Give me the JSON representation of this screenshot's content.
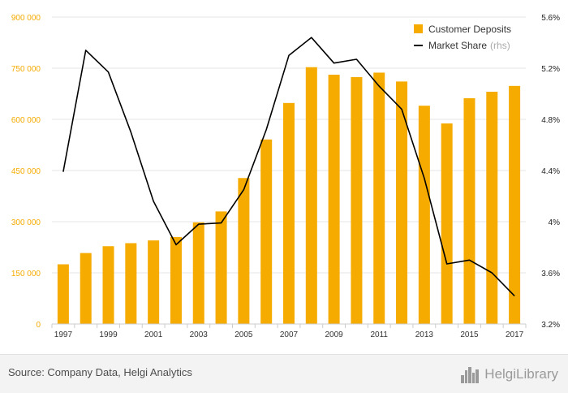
{
  "chart_data": {
    "type": "bar+line",
    "categories": [
      "1997",
      "1998",
      "1999",
      "2000",
      "2001",
      "2002",
      "2003",
      "2004",
      "2005",
      "2006",
      "2007",
      "2008",
      "2009",
      "2010",
      "2011",
      "2012",
      "2013",
      "2014",
      "2015",
      "2016",
      "2017"
    ],
    "series": [
      {
        "name": "Customer Deposits",
        "type": "bar",
        "axis": "left",
        "values": [
          175000,
          208000,
          228000,
          237000,
          245000,
          255000,
          298000,
          330000,
          428000,
          541000,
          648000,
          753000,
          731000,
          724000,
          737000,
          711000,
          640000,
          588000,
          662000,
          681000,
          698000
        ]
      },
      {
        "name": "Market Share",
        "legend_suffix": "(rhs)",
        "type": "line",
        "axis": "right",
        "values": [
          4.39,
          5.34,
          5.17,
          4.7,
          4.16,
          3.82,
          3.98,
          3.99,
          4.25,
          4.72,
          5.3,
          5.44,
          5.24,
          5.27,
          5.06,
          4.88,
          4.34,
          3.67,
          3.7,
          3.6,
          3.42
        ]
      }
    ],
    "y_left": {
      "ylim": [
        0,
        900000
      ],
      "ticks": [
        "0",
        "150 000",
        "300 000",
        "450 000",
        "600 000",
        "750 000",
        "900 000"
      ]
    },
    "y_right": {
      "ylim": [
        3.2,
        5.6
      ],
      "ticks": [
        "3.2%",
        "3.6%",
        "4%",
        "4.4%",
        "4.8%",
        "5.2%",
        "5.6%"
      ]
    },
    "x_tick_labels": [
      "1997",
      "1999",
      "2001",
      "2003",
      "2005",
      "2007",
      "2009",
      "2011",
      "2013",
      "2015",
      "2017"
    ],
    "legend_position": "top-right",
    "grid": true,
    "colors": {
      "bar": "#f5ab00",
      "line": "#000000",
      "left_axis_text": "#f5ab00",
      "right_axis_text": "#222222",
      "grid": "#e6e6e6"
    }
  },
  "footer": {
    "source": "Source: Company Data, Helgi Analytics",
    "logo_text": "HelgiLibrary",
    "logo_icon": "city-skyline-icon"
  }
}
